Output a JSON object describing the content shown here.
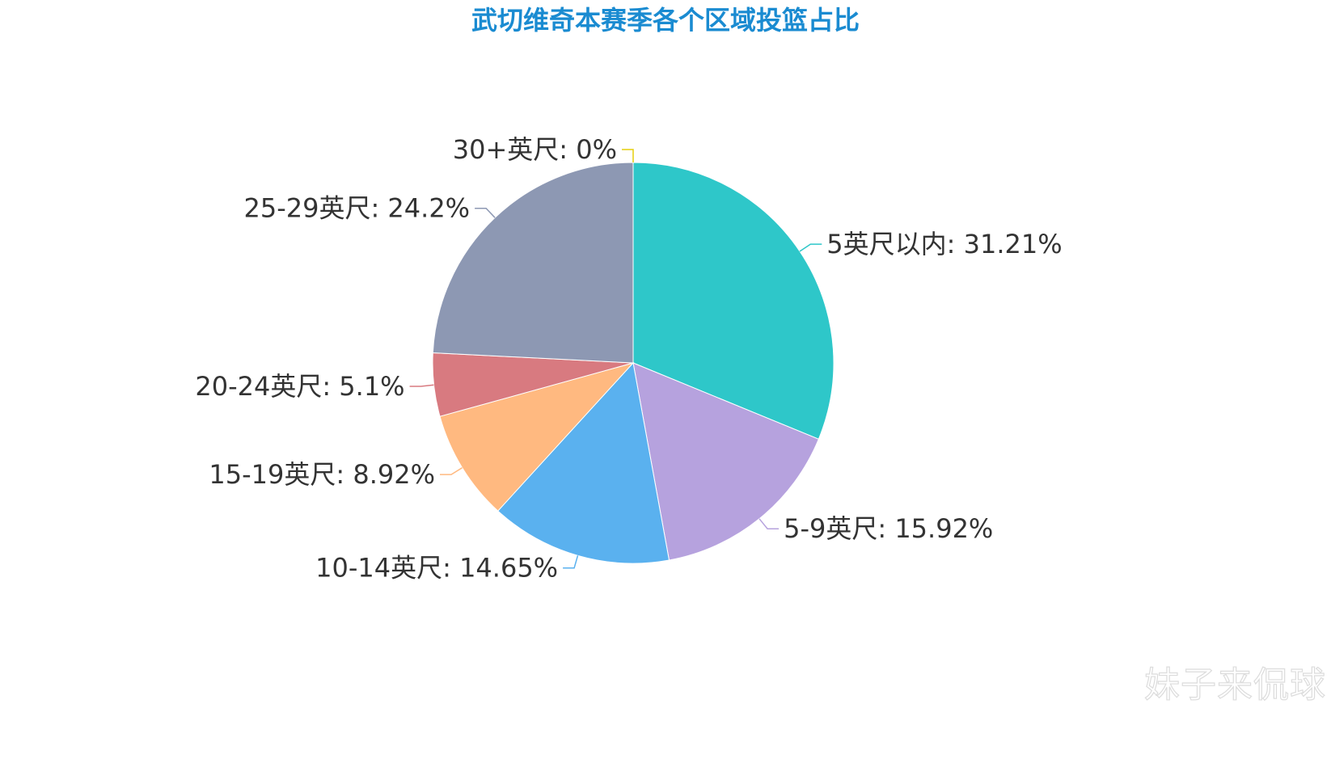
{
  "chart_data": {
    "type": "pie",
    "title": "武切维奇本赛季各个区域投篮占比",
    "slices": [
      {
        "label": "5英尺以内: 31.21%",
        "value": 31.21,
        "color": "#2ec7c9"
      },
      {
        "label": "5-9英尺: 15.92%",
        "value": 15.92,
        "color": "#b6a2de"
      },
      {
        "label": "10-14英尺: 14.65%",
        "value": 14.65,
        "color": "#5ab1ef"
      },
      {
        "label": "15-19英尺: 8.92%",
        "value": 8.92,
        "color": "#ffb980"
      },
      {
        "label": "20-24英尺: 5.1%",
        "value": 5.1,
        "color": "#d87a80"
      },
      {
        "label": "25-29英尺: 24.2%",
        "value": 24.2,
        "color": "#8d98b3"
      },
      {
        "label": "30+英尺: 0%",
        "value": 0,
        "color": "#e5cf0d"
      }
    ]
  },
  "watermark": {
    "text": "妹子来侃球"
  }
}
